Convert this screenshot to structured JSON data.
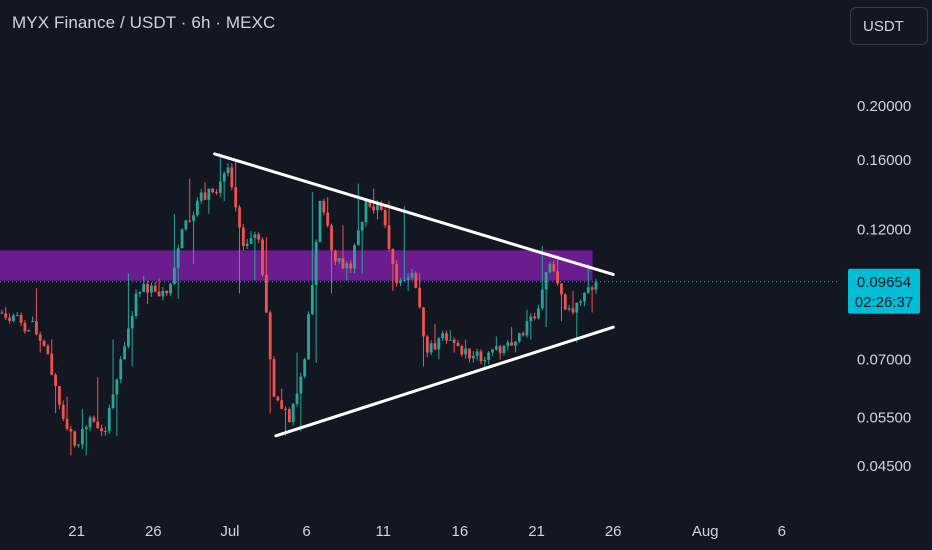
{
  "header": {
    "title": "MYX Finance / USDT · 6h · MEXC",
    "currency_button": "USDT"
  },
  "colors": {
    "background": "#131722",
    "up": "#26a69a",
    "down": "#ef5350",
    "zone": "#7b1fa2",
    "trendline": "#ffffff",
    "last_price": "#00bcd4",
    "text": "#d1d4dc"
  },
  "chart_data": {
    "type": "candlestick",
    "scale": "log",
    "ylim": [
      0.04,
      0.235
    ],
    "y_ticks": [
      {
        "value": 0.2,
        "label": "0.20000"
      },
      {
        "value": 0.16,
        "label": "0.16000"
      },
      {
        "value": 0.12,
        "label": "0.12000"
      },
      {
        "value": 0.07,
        "label": "0.07000"
      },
      {
        "value": 0.055,
        "label": "0.05500"
      },
      {
        "value": 0.045,
        "label": "0.04500"
      }
    ],
    "x_range": [
      "Jun 16",
      "Aug 9"
    ],
    "x_ticks": [
      {
        "date": "Jun 21",
        "label": "21"
      },
      {
        "date": "Jun 26",
        "label": "26"
      },
      {
        "date": "Jul 1",
        "label": "Jul"
      },
      {
        "date": "Jul 6",
        "label": "6"
      },
      {
        "date": "Jul 11",
        "label": "11"
      },
      {
        "date": "Jul 16",
        "label": "16"
      },
      {
        "date": "Jul 21",
        "label": "21"
      },
      {
        "date": "Jul 26",
        "label": "26"
      },
      {
        "date": "Aug 1",
        "label": "Aug"
      },
      {
        "date": "Aug 6",
        "label": "6"
      }
    ],
    "last_price": {
      "value": 0.09654,
      "label": "0.09654",
      "countdown": "02:26:37"
    },
    "zone": {
      "from": "Jun 16",
      "to": "Jul 24",
      "low": 0.097,
      "high": 0.11
    },
    "trendlines": [
      {
        "from": {
          "date": "Jun 30",
          "value": 0.164
        },
        "to": {
          "date": "Jul 26",
          "value": 0.0995
        }
      },
      {
        "from": {
          "date": "Jul 4",
          "value": 0.051
        },
        "to": {
          "date": "Jul 26",
          "value": 0.08
        }
      }
    ],
    "series": [
      {
        "date": "Jun 16",
        "open": 0.085,
        "high": 0.087,
        "low": 0.083,
        "close": 0.084
      },
      {
        "date": "Jun 17",
        "open": 0.084,
        "high": 0.085,
        "low": 0.078,
        "close": 0.079
      },
      {
        "date": "Jun 18",
        "open": 0.082,
        "high": 0.094,
        "low": 0.072,
        "close": 0.074
      },
      {
        "date": "Jun 19",
        "open": 0.074,
        "high": 0.076,
        "low": 0.056,
        "close": 0.058
      },
      {
        "date": "Jun 20",
        "open": 0.058,
        "high": 0.06,
        "low": 0.047,
        "close": 0.049
      },
      {
        "date": "Jun 21",
        "open": 0.049,
        "high": 0.057,
        "low": 0.047,
        "close": 0.055
      },
      {
        "date": "Jun 22",
        "open": 0.055,
        "high": 0.065,
        "low": 0.051,
        "close": 0.052
      },
      {
        "date": "Jun 23",
        "open": 0.052,
        "high": 0.076,
        "low": 0.051,
        "close": 0.07
      },
      {
        "date": "Jun 24",
        "open": 0.07,
        "high": 0.1,
        "low": 0.068,
        "close": 0.092
      },
      {
        "date": "Jun 25",
        "open": 0.092,
        "high": 0.099,
        "low": 0.088,
        "close": 0.095
      },
      {
        "date": "Jun 26",
        "open": 0.095,
        "high": 0.098,
        "low": 0.09,
        "close": 0.092
      },
      {
        "date": "Jun 27",
        "open": 0.092,
        "high": 0.128,
        "low": 0.09,
        "close": 0.12
      },
      {
        "date": "Jun 28",
        "open": 0.12,
        "high": 0.148,
        "low": 0.104,
        "close": 0.135
      },
      {
        "date": "Jun 29",
        "open": 0.135,
        "high": 0.146,
        "low": 0.128,
        "close": 0.14
      },
      {
        "date": "Jun 30",
        "open": 0.14,
        "high": 0.164,
        "low": 0.135,
        "close": 0.155
      },
      {
        "date": "Jul 1",
        "open": 0.155,
        "high": 0.16,
        "low": 0.092,
        "close": 0.112
      },
      {
        "date": "Jul 2",
        "open": 0.112,
        "high": 0.119,
        "low": 0.097,
        "close": 0.115
      },
      {
        "date": "Jul 3",
        "open": 0.115,
        "high": 0.116,
        "low": 0.056,
        "close": 0.06
      },
      {
        "date": "Jul 4",
        "open": 0.06,
        "high": 0.062,
        "low": 0.051,
        "close": 0.054
      },
      {
        "date": "Jul 5",
        "open": 0.054,
        "high": 0.072,
        "low": 0.052,
        "close": 0.07
      },
      {
        "date": "Jul 6",
        "open": 0.07,
        "high": 0.14,
        "low": 0.069,
        "close": 0.135
      },
      {
        "date": "Jul 7",
        "open": 0.135,
        "high": 0.137,
        "low": 0.092,
        "close": 0.105
      },
      {
        "date": "Jul 8",
        "open": 0.105,
        "high": 0.122,
        "low": 0.097,
        "close": 0.102
      },
      {
        "date": "Jul 9",
        "open": 0.102,
        "high": 0.145,
        "low": 0.1,
        "close": 0.135
      },
      {
        "date": "Jul 10",
        "open": 0.135,
        "high": 0.142,
        "low": 0.125,
        "close": 0.13
      },
      {
        "date": "Jul 11",
        "open": 0.13,
        "high": 0.135,
        "low": 0.093,
        "close": 0.096
      },
      {
        "date": "Jul 12",
        "open": 0.096,
        "high": 0.132,
        "low": 0.093,
        "close": 0.1
      },
      {
        "date": "Jul 13",
        "open": 0.1,
        "high": 0.1,
        "low": 0.068,
        "close": 0.072
      },
      {
        "date": "Jul 14",
        "open": 0.072,
        "high": 0.081,
        "low": 0.07,
        "close": 0.078
      },
      {
        "date": "Jul 15",
        "open": 0.078,
        "high": 0.079,
        "low": 0.072,
        "close": 0.074
      },
      {
        "date": "Jul 16",
        "open": 0.074,
        "high": 0.076,
        "low": 0.07,
        "close": 0.071
      },
      {
        "date": "Jul 17",
        "open": 0.071,
        "high": 0.073,
        "low": 0.067,
        "close": 0.072
      },
      {
        "date": "Jul 18",
        "open": 0.072,
        "high": 0.077,
        "low": 0.07,
        "close": 0.074
      },
      {
        "date": "Jul 19",
        "open": 0.074,
        "high": 0.08,
        "low": 0.072,
        "close": 0.078
      },
      {
        "date": "Jul 20",
        "open": 0.078,
        "high": 0.086,
        "low": 0.076,
        "close": 0.083
      },
      {
        "date": "Jul 21",
        "open": 0.083,
        "high": 0.112,
        "low": 0.08,
        "close": 0.104
      },
      {
        "date": "Jul 22",
        "open": 0.104,
        "high": 0.108,
        "low": 0.082,
        "close": 0.086
      },
      {
        "date": "Jul 23",
        "open": 0.086,
        "high": 0.093,
        "low": 0.075,
        "close": 0.089
      },
      {
        "date": "Jul 24",
        "open": 0.089,
        "high": 0.104,
        "low": 0.085,
        "close": 0.0965
      }
    ]
  }
}
